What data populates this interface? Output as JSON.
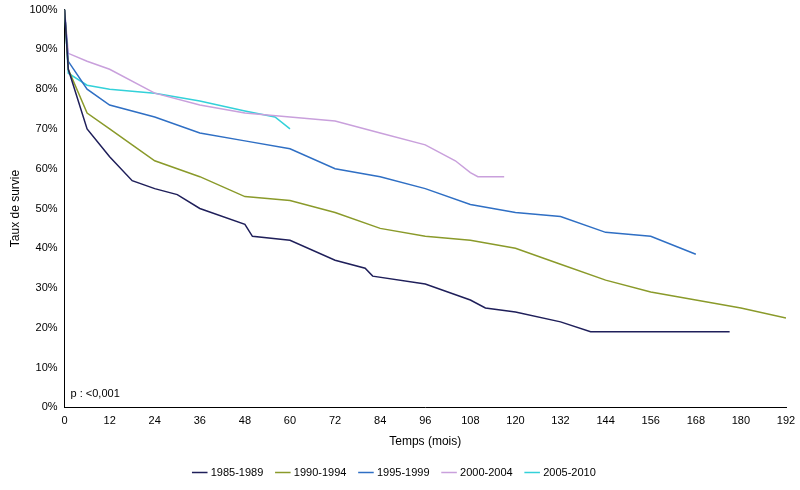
{
  "chart_data": {
    "type": "line",
    "x_label": "Temps (mois)",
    "y_label": "Taux de survie",
    "annotation": "p : <0,001",
    "xlim": [
      0,
      192
    ],
    "xticks": [
      0,
      12,
      24,
      36,
      48,
      60,
      72,
      84,
      96,
      108,
      120,
      132,
      144,
      156,
      168,
      180,
      192
    ],
    "ylim": [
      0,
      100
    ],
    "yticks": [
      {
        "value": 0,
        "label": "0%"
      },
      {
        "value": 10,
        "label": "10%"
      },
      {
        "value": 20,
        "label": "20%"
      },
      {
        "value": 30,
        "label": "30%"
      },
      {
        "value": 40,
        "label": "40%"
      },
      {
        "value": 50,
        "label": "50%"
      },
      {
        "value": 60,
        "label": "60%"
      },
      {
        "value": 70,
        "label": "70%"
      },
      {
        "value": 80,
        "label": "80%"
      },
      {
        "value": 90,
        "label": "90%"
      },
      {
        "value": 100,
        "label": "100%"
      }
    ],
    "grid": false,
    "legend": "bottom",
    "series": [
      {
        "name": "1985-1989",
        "color": "#1f1f5a",
        "x": [
          0,
          1,
          6,
          12,
          18,
          24,
          30,
          36,
          48,
          50,
          60,
          72,
          80,
          82,
          96,
          108,
          112,
          120,
          132,
          140,
          177
        ],
        "values": [
          100,
          85,
          70,
          63,
          57,
          55,
          53.5,
          50,
          46,
          43,
          42,
          37,
          35,
          33,
          31,
          27,
          25,
          24,
          21.5,
          19,
          19
        ]
      },
      {
        "name": "1990-1994",
        "color": "#8a9a2a",
        "x": [
          0,
          1,
          6,
          12,
          18,
          24,
          36,
          48,
          60,
          72,
          84,
          96,
          108,
          120,
          132,
          144,
          156,
          168,
          180,
          192
        ],
        "values": [
          100,
          85,
          74,
          70,
          66,
          62,
          58,
          53,
          52,
          49,
          45,
          43,
          42,
          40,
          36,
          32,
          29,
          27,
          25,
          22.5
        ]
      },
      {
        "name": "1995-1999",
        "color": "#2f6fc4",
        "x": [
          0,
          1,
          6,
          12,
          24,
          36,
          48,
          60,
          72,
          84,
          96,
          108,
          120,
          132,
          144,
          156,
          164,
          168
        ],
        "values": [
          100,
          87,
          80,
          76,
          73,
          69,
          67,
          65,
          60,
          58,
          55,
          51,
          49,
          48,
          44,
          43,
          40,
          38.5
        ]
      },
      {
        "name": "2000-2004",
        "color": "#c9a0dc",
        "x": [
          0,
          1,
          6,
          12,
          24,
          36,
          48,
          60,
          72,
          84,
          96,
          104,
          108,
          110,
          117
        ],
        "values": [
          100,
          89,
          87,
          85,
          79,
          76,
          74,
          73,
          72,
          69,
          66,
          62,
          59,
          58,
          58
        ]
      },
      {
        "name": "2005-2010",
        "color": "#33d1d9",
        "x": [
          0,
          1,
          6,
          12,
          24,
          36,
          48,
          56,
          60
        ],
        "values": [
          100,
          84,
          81,
          80,
          79,
          77,
          74.5,
          73,
          70
        ]
      }
    ]
  }
}
